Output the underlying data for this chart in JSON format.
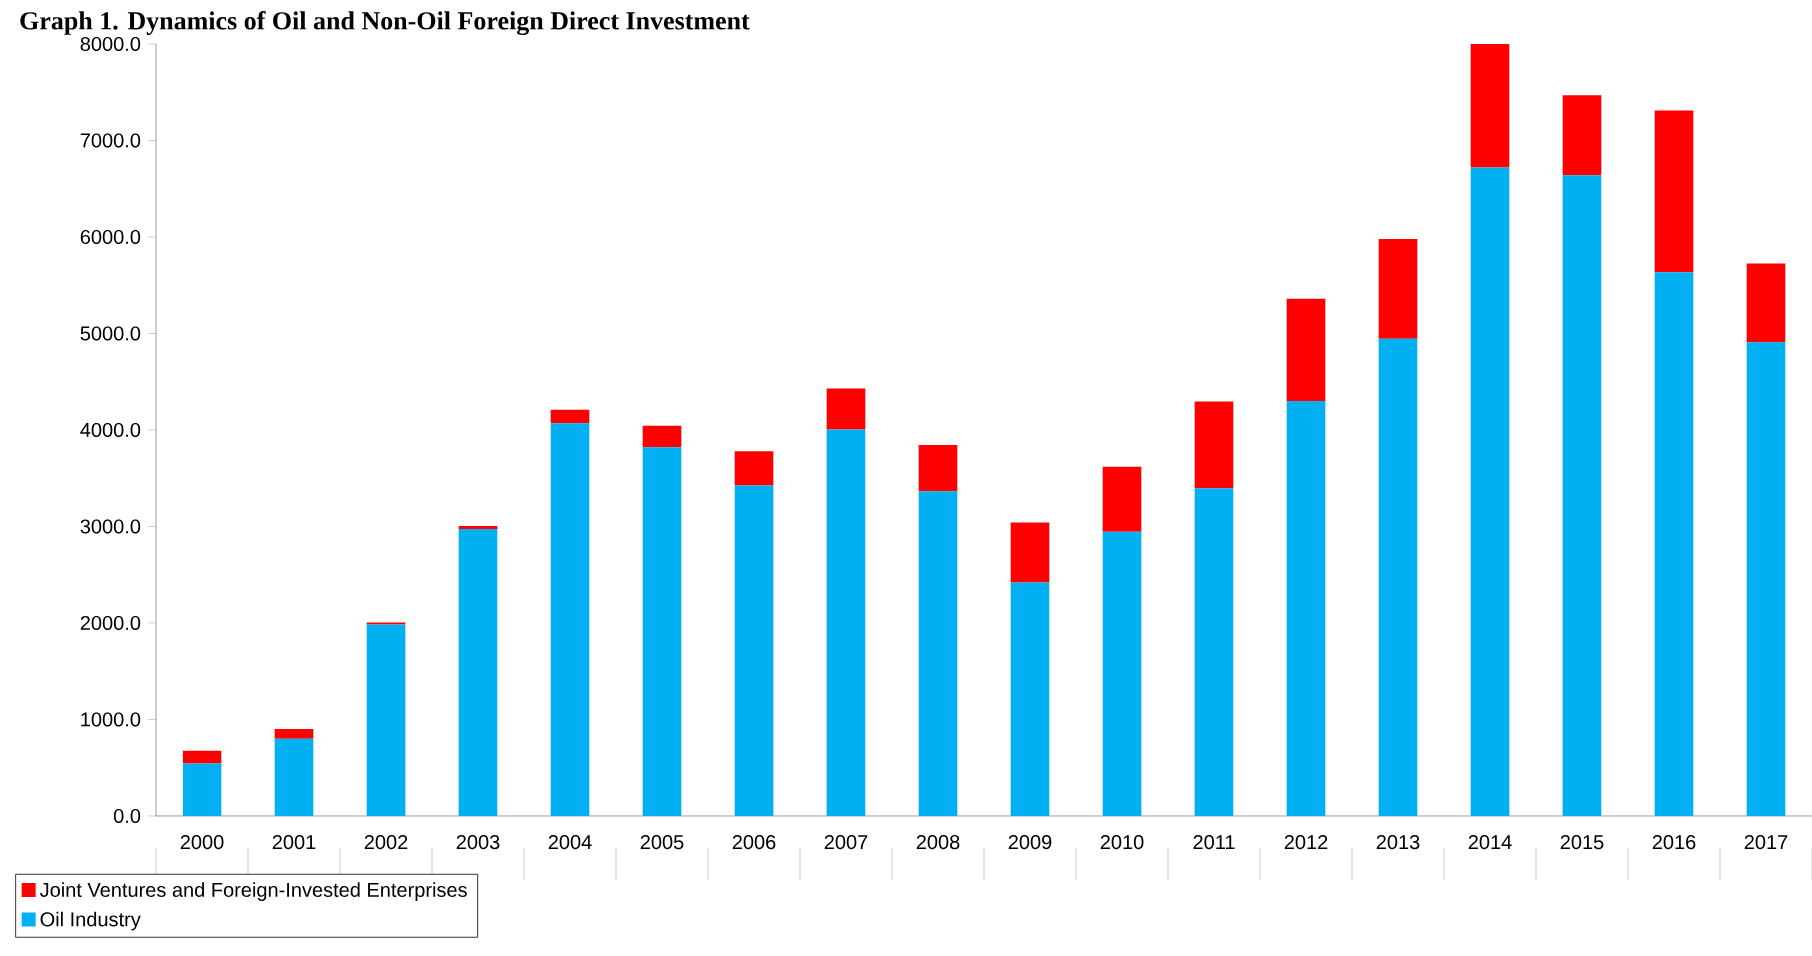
{
  "chart_data": {
    "type": "bar",
    "stacked": true,
    "title": "Graph 1. Dynamics of Oil and Non-Oil Foreign Direct Investment",
    "categories": [
      "2000",
      "2001",
      "2002",
      "2003",
      "2004",
      "2005",
      "2006",
      "2007",
      "2008",
      "2009",
      "2010",
      "2011",
      "2012",
      "2013",
      "2014",
      "2015",
      "2016",
      "2017"
    ],
    "series": [
      {
        "name": "Oil Industry",
        "color": "#00b0f0",
        "values": [
          545,
          800,
          1985,
          2975,
          4070,
          3820,
          3425,
          4005,
          3365,
          2420,
          2945,
          3395,
          4300,
          4945,
          6720,
          6640,
          5635,
          4910
        ]
      },
      {
        "name": "Joint Ventures and Foreign-Invested Enterprises",
        "color": "#ff0000",
        "values": [
          130,
          100,
          20,
          30,
          140,
          225,
          355,
          425,
          480,
          620,
          675,
          900,
          1060,
          1035,
          1295,
          830,
          1675,
          815
        ]
      }
    ],
    "ylim": [
      0,
      8000
    ],
    "yticks": [
      {
        "value": 0,
        "label": "0.0"
      },
      {
        "value": 1000,
        "label": "1000.0"
      },
      {
        "value": 2000,
        "label": "2000.0"
      },
      {
        "value": 3000,
        "label": "3000.0"
      },
      {
        "value": 4000,
        "label": "4000.0"
      },
      {
        "value": 5000,
        "label": "5000.0"
      },
      {
        "value": 6000,
        "label": "6000.0"
      },
      {
        "value": 7000,
        "label": "7000.0"
      },
      {
        "value": 8000,
        "label": "8000.0"
      }
    ],
    "grid": false,
    "legend": "bottom left"
  }
}
